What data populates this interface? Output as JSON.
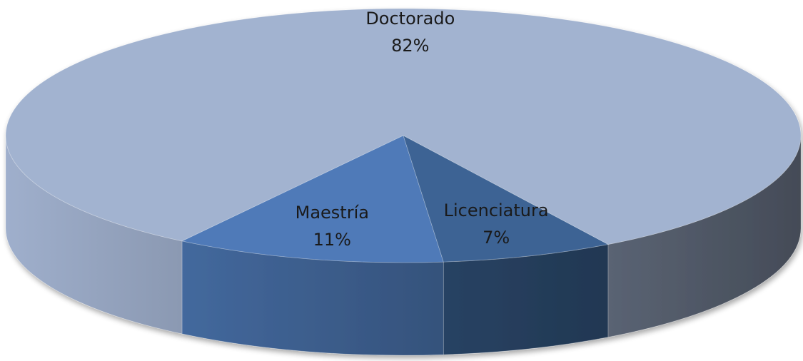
{
  "chart_data": {
    "type": "pie",
    "categories": [
      "Doctorado",
      "Maestría",
      "Licenciatura"
    ],
    "values": [
      82,
      11,
      7
    ],
    "value_labels": [
      "82%",
      "11%",
      "7%"
    ],
    "colors": [
      "#a2b3d0",
      "#4f7ab8",
      "#3c6394"
    ]
  }
}
